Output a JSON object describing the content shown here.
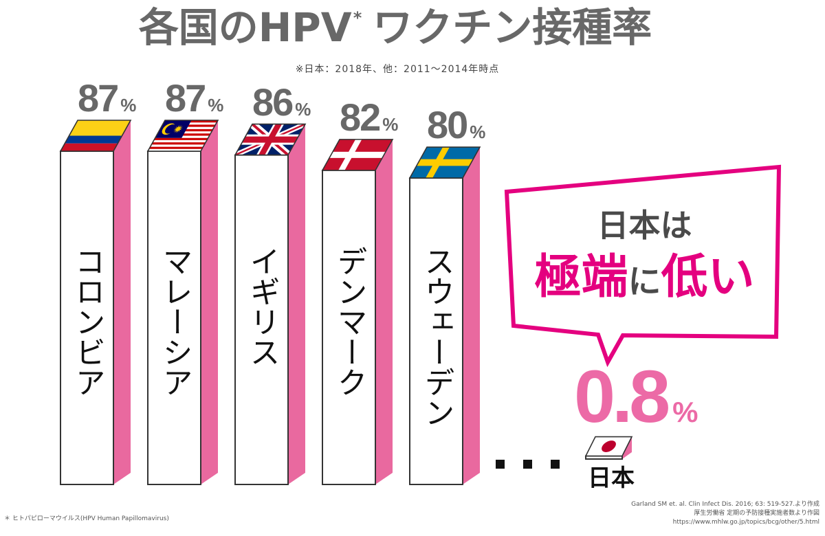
{
  "colors": {
    "text_gray": "#686868",
    "bar_front": "#ffffff",
    "bar_side": "#e9699f",
    "outline": "#333333",
    "accent": "#e4007f",
    "japan_value": "#ec6aa6"
  },
  "chart_data": {
    "type": "bar",
    "title": {
      "part1": "各国のHPV",
      "mark": "*",
      "part2": "ワクチン接種率"
    },
    "subtitle": "※日本：2018年、他：2011～2014年時点",
    "categories": [
      "コロンビア",
      "マレーシア",
      "イギリス",
      "デンマーク",
      "スウェーデン",
      "日本"
    ],
    "values": [
      87,
      87,
      86,
      82,
      80,
      0.8
    ],
    "value_suffix": "%",
    "category_icons": [
      "colombia-flag-icon",
      "malaysia-flag-icon",
      "uk-flag-icon",
      "denmark-flag-icon",
      "sweden-flag-icon",
      "japan-flag-icon"
    ],
    "grid": false,
    "legend": "none"
  },
  "callout": {
    "line1": "日本は",
    "emph1": "極端",
    "mid": "に",
    "emph2": "低い"
  },
  "footnote": "＊ ヒトパピローマウイルス(HPV Human Papillomavirus)",
  "sources": [
    "Garland SM et. al. Clin Infect Dis. 2016; 63: 519-527.より作成",
    "厚生労働省 定期の予防接種実施者数より作図",
    "https://www.mhlw.go.jp/topics/bcg/other/5.html"
  ]
}
